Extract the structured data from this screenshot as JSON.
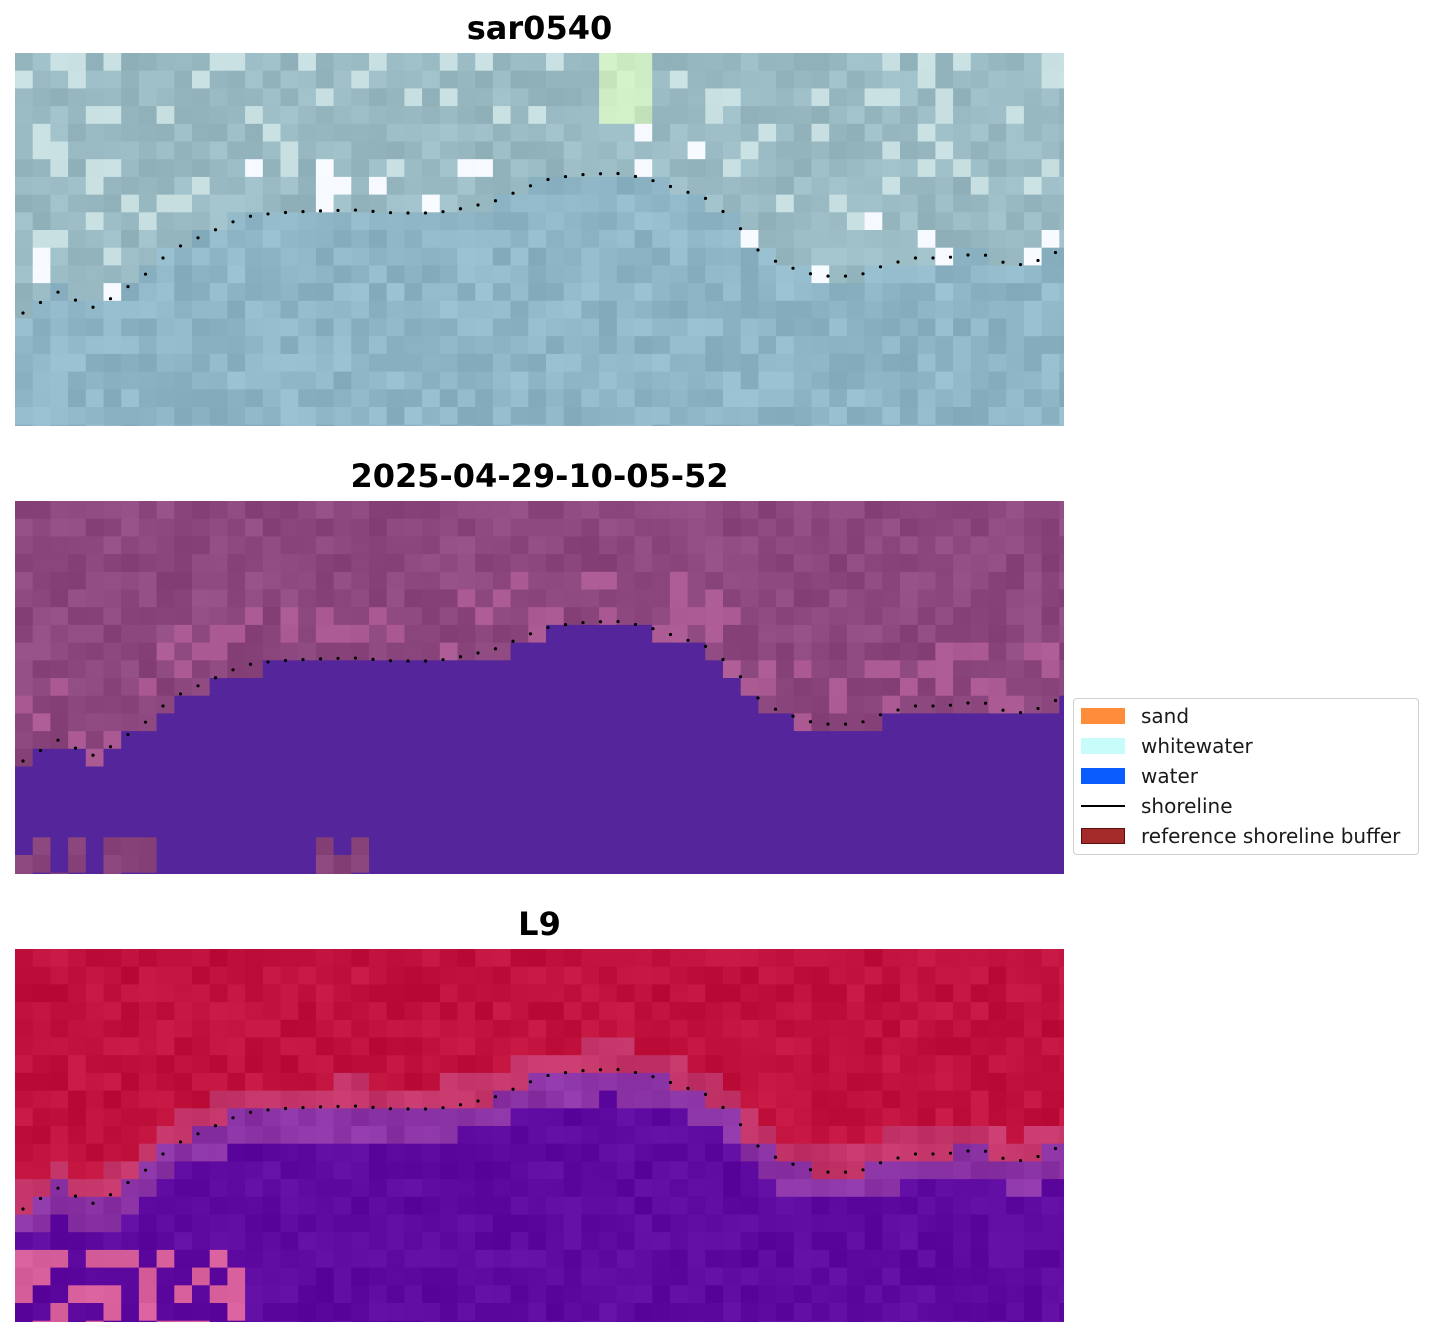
{
  "panels": [
    {
      "title": "sar0540",
      "kind": "rgb"
    },
    {
      "title": "2025-04-29-10-05-52",
      "kind": "classification"
    },
    {
      "title": "L9",
      "kind": "index"
    }
  ],
  "legend": {
    "items": [
      {
        "label": "sand",
        "type": "patch",
        "color": "#ff8c3a"
      },
      {
        "label": "whitewater",
        "type": "patch",
        "color": "#c8fcfb"
      },
      {
        "label": "water",
        "type": "patch",
        "color": "#0a5cff"
      },
      {
        "label": "shoreline",
        "type": "line",
        "color": "#000000"
      },
      {
        "label": "reference shoreline buffer",
        "type": "patch",
        "color": "#a52a2a"
      }
    ]
  },
  "colors": {
    "rgb_land": "#9bbcc4",
    "rgb_water": "#8fb6c6",
    "class_land": "#8e4880",
    "class_water": "#54259b",
    "index_land": "#c0123d",
    "index_water": "#5e0aa0",
    "shoreline_dots": "#000000"
  }
}
